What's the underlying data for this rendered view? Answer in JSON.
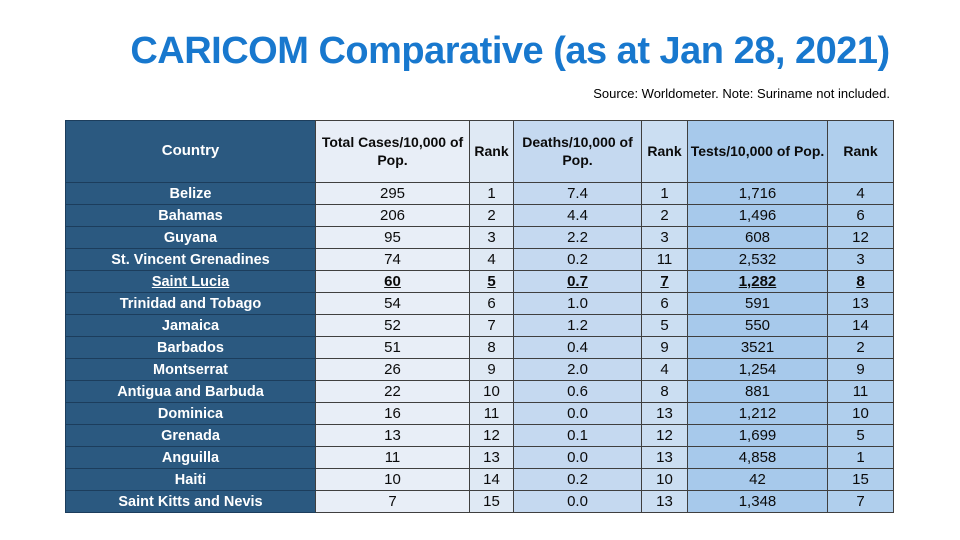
{
  "slide": {
    "title": "CARICOM Comparative (as at Jan 28, 2021)",
    "source_note": "Source: Worldometer. Note: Suriname not included."
  },
  "colors": {
    "title_blue": "#1878CE",
    "country_bg": "#2B5980",
    "country_border": "#1C3D5C",
    "band_cases": "#E8EEF7",
    "band_rank1": "#DFE9F4",
    "band_deaths": "#C5D9F0",
    "band_rank2": "#CBDEF2",
    "band_tests": "#A7C9EB",
    "band_rank3": "#B0CFED",
    "grid_border": "#3F3F3F"
  },
  "chart_data": {
    "type": "table",
    "title": "CARICOM Comparative (as at Jan 28, 2021)",
    "source": "Source: Worldometer. Note: Suriname not included.",
    "columns": [
      "Country",
      "Total Cases/10,000 of Pop.",
      "Rank",
      "Deaths/10,000 of Pop.",
      "Rank",
      "Tests/10,000 of Pop.",
      "Rank"
    ],
    "highlighted_row": "Saint Lucia",
    "rows": [
      {
        "country": "Belize",
        "values": [
          "295",
          "1",
          "7.4",
          "1",
          "1,716",
          "4"
        ],
        "highlight": false
      },
      {
        "country": "Bahamas",
        "values": [
          "206",
          "2",
          "4.4",
          "2",
          "1,496",
          "6"
        ],
        "highlight": false
      },
      {
        "country": "Guyana",
        "values": [
          "95",
          "3",
          "2.2",
          "3",
          "608",
          "12"
        ],
        "highlight": false
      },
      {
        "country": "St. Vincent Grenadines",
        "values": [
          "74",
          "4",
          "0.2",
          "11",
          "2,532",
          "3"
        ],
        "highlight": false
      },
      {
        "country": "Saint Lucia",
        "values": [
          "60",
          "5",
          "0.7",
          "7",
          "1,282",
          "8"
        ],
        "highlight": true
      },
      {
        "country": "Trinidad and Tobago",
        "values": [
          "54",
          "6",
          "1.0",
          "6",
          "591",
          "13"
        ],
        "highlight": false
      },
      {
        "country": "Jamaica",
        "values": [
          "52",
          "7",
          "1.2",
          "5",
          "550",
          "14"
        ],
        "highlight": false
      },
      {
        "country": "Barbados",
        "values": [
          "51",
          "8",
          "0.4",
          "9",
          "3521",
          "2"
        ],
        "highlight": false
      },
      {
        "country": "Montserrat",
        "values": [
          "26",
          "9",
          "2.0",
          "4",
          "1,254",
          "9"
        ],
        "highlight": false
      },
      {
        "country": "Antigua and Barbuda",
        "values": [
          "22",
          "10",
          "0.6",
          "8",
          "881",
          "11"
        ],
        "highlight": false
      },
      {
        "country": "Dominica",
        "values": [
          "16",
          "11",
          "0.0",
          "13",
          "1,212",
          "10"
        ],
        "highlight": false
      },
      {
        "country": "Grenada",
        "values": [
          "13",
          "12",
          "0.1",
          "12",
          "1,699",
          "5"
        ],
        "highlight": false
      },
      {
        "country": "Anguilla",
        "values": [
          "11",
          "13",
          "0.0",
          "13",
          "4,858",
          "1"
        ],
        "highlight": false
      },
      {
        "country": "Haiti",
        "values": [
          "10",
          "14",
          "0.2",
          "10",
          "42",
          "15"
        ],
        "highlight": false
      },
      {
        "country": "Saint Kitts and Nevis",
        "values": [
          "7",
          "15",
          "0.0",
          "13",
          "1,348",
          "7"
        ],
        "highlight": false
      }
    ]
  }
}
